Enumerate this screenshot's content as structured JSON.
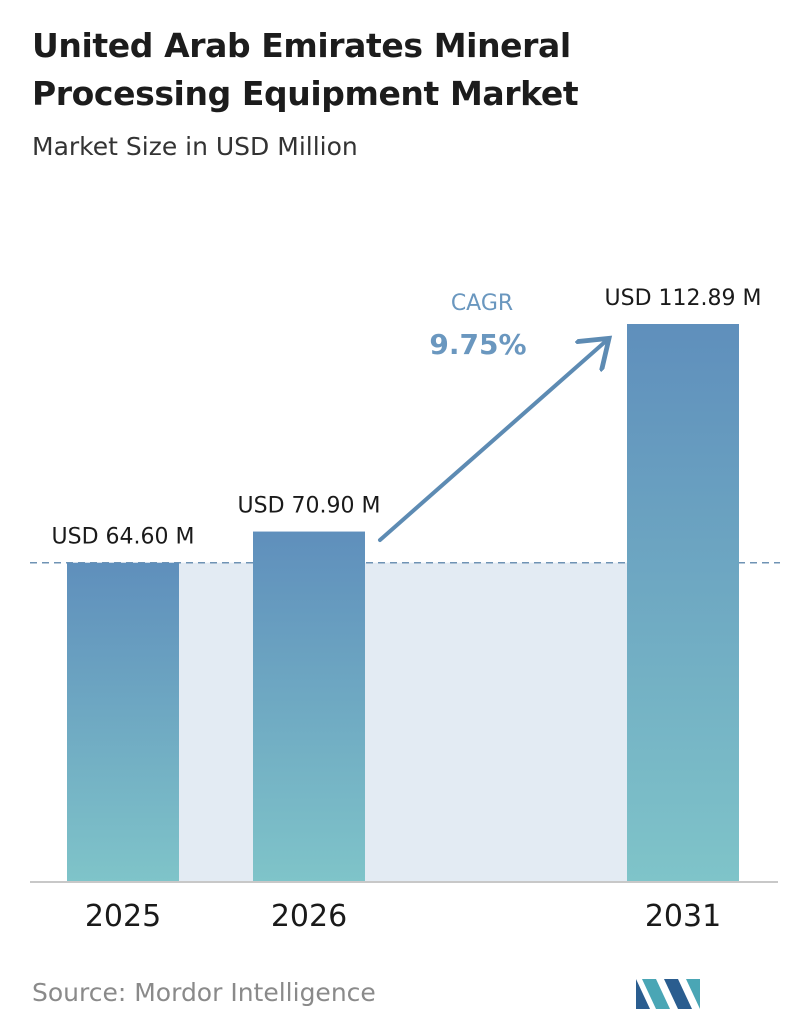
{
  "header": {
    "title": "United Arab Emirates Mineral Processing Equipment Market",
    "subtitle": "Market Size in USD Million"
  },
  "chart_data": {
    "type": "bar",
    "title": "United Arab Emirates Mineral Processing Equipment Market",
    "subtitle": "Market Size in USD Million",
    "categories": [
      "2025",
      "2026",
      "2031"
    ],
    "values": [
      64.6,
      70.9,
      112.89
    ],
    "data_labels": [
      "USD 64.60 M",
      "USD 70.90 M",
      "USD 112.89 M"
    ],
    "ylim": [
      0,
      112.89
    ],
    "grid": false,
    "reference_line_value": 64.6,
    "annotation": {
      "label": "CAGR",
      "value": "9.75%"
    },
    "colors": {
      "bar_top": "#5f8fbc",
      "bar_bottom": "#7fc4c9",
      "band": "#e3ebf3",
      "reference_line": "#6f93b4",
      "arrow": "#5d8bb3",
      "cagr_text": "#6a97bf"
    }
  },
  "footer": {
    "source": "Source:  Mordor Intelligence",
    "logo_icon": "mordor-intelligence-logo-icon"
  }
}
